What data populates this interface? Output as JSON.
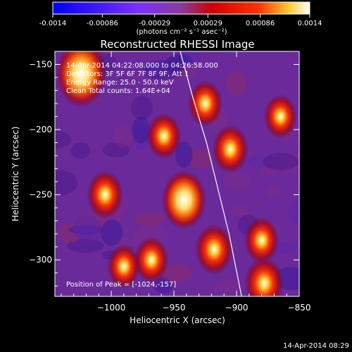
{
  "colorbar": {
    "tick_labels": [
      "-0.0014",
      "-0.00086",
      "-0.00029",
      "0.00029",
      "0.00086",
      "0.0014"
    ],
    "tick_values": [
      -0.0014,
      -0.00086,
      -0.00029,
      0.00029,
      0.00086,
      0.0014
    ],
    "range": [
      -0.0014,
      0.0014
    ],
    "unit_label": "(photons cm⁻² s⁻¹ asec⁻²)",
    "colors": {
      "negative_low": "#0000ff",
      "negative_high": "#7a30ff",
      "mid": "#8a3a9a",
      "positive_low": "#cc0000",
      "positive_mid": "#ff3300",
      "positive_high": "#ffcc33",
      "peak": "#ffffff"
    }
  },
  "chart_data": {
    "type": "heatmap",
    "title": "Reconstructed RHESSI Image",
    "xlabel": "Heliocentric X (arcsec)",
    "ylabel": "Heliocentric Y (arcsec)",
    "xlim": [
      -1045,
      -850
    ],
    "ylim": [
      -328,
      -140
    ],
    "xticks": [
      -1000,
      -950,
      -900,
      -850
    ],
    "xtick_labels": [
      "−1000",
      "−950",
      "−900",
      "−850"
    ],
    "yticks": [
      -300,
      -250,
      -200,
      -150
    ],
    "ytick_labels": [
      "−300",
      "−250",
      "−200",
      "−150"
    ],
    "info_lines": [
      "14-Apr-2014 04:22:08.000 to 04:26:58.000",
      "Detectors: 3F 5F 6F 7F 8F 9F, Att 1",
      "Energy Range: 25.0 - 50.0 keV",
      "Clean    Total counts: 1.64E+04"
    ],
    "peak_label": "Position of Peak = [-1024,-157]",
    "peak_position": [
      -1024,
      -157
    ],
    "limb_curve": [
      [
        -945,
        -140
      ],
      [
        -935,
        -175
      ],
      [
        -924,
        -210
      ],
      [
        -915,
        -245
      ],
      [
        -906,
        -280
      ],
      [
        -896,
        -328
      ]
    ],
    "sources": [
      {
        "x": -1024,
        "y": -157,
        "intensity": 1.0
      },
      {
        "x": -925,
        "y": -180,
        "intensity": 0.5
      },
      {
        "x": -905,
        "y": -215,
        "intensity": 0.55
      },
      {
        "x": -958,
        "y": -205,
        "intensity": 0.5
      },
      {
        "x": -1005,
        "y": -250,
        "intensity": 0.55
      },
      {
        "x": -942,
        "y": -254,
        "intensity": 0.8
      },
      {
        "x": -880,
        "y": -285,
        "intensity": 0.5
      },
      {
        "x": -918,
        "y": -292,
        "intensity": 0.6
      },
      {
        "x": -968,
        "y": -300,
        "intensity": 0.5
      },
      {
        "x": -878,
        "y": -318,
        "intensity": 0.65
      },
      {
        "x": -990,
        "y": -305,
        "intensity": 0.45
      },
      {
        "x": -865,
        "y": -190,
        "intensity": 0.45
      }
    ]
  },
  "footer": {
    "timestamp": "14-Apr-2014 08:29"
  }
}
